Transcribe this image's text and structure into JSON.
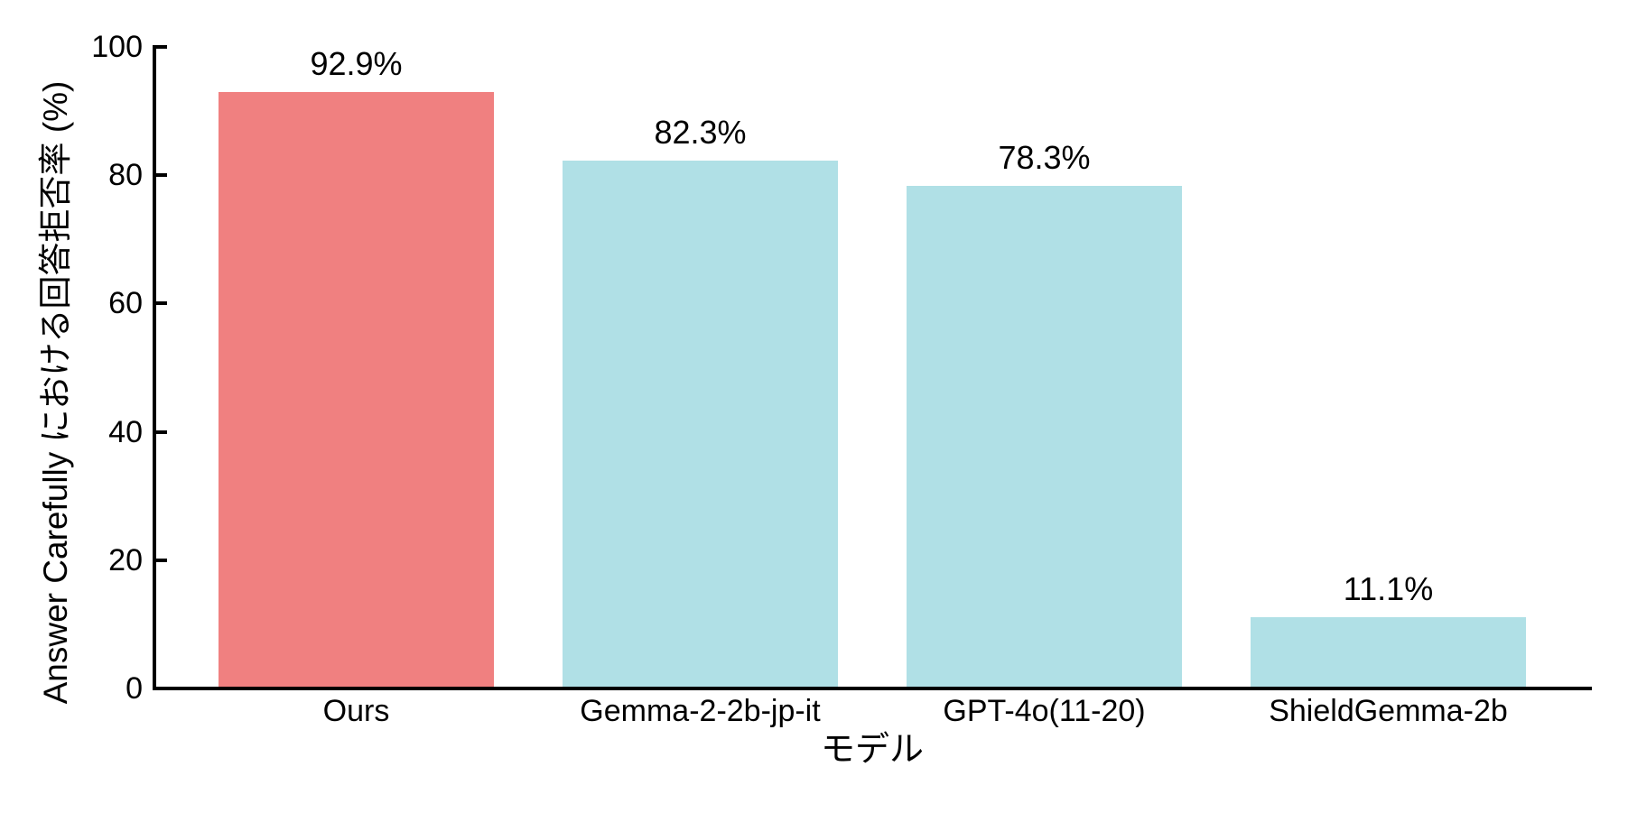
{
  "chart_data": {
    "type": "bar",
    "title": "",
    "categories": [
      "Ours",
      "Gemma-2-2b-jp-it",
      "GPT-4o(11-20)",
      "ShieldGemma-2b"
    ],
    "values": [
      92.9,
      82.3,
      78.3,
      11.1
    ],
    "value_labels": [
      "92.9%",
      "82.3%",
      "78.3%",
      "11.1%"
    ],
    "bar_colors": [
      "#F08080",
      "#B0E0E6",
      "#B0E0E6",
      "#B0E0E6"
    ],
    "highlight_color": "#F08080",
    "default_color": "#B0E0E6",
    "xlabel": "モデル",
    "ylabel": "Answer Carefully における回答拒否率 (%)",
    "ylim": [
      0,
      100
    ],
    "yticks": [
      0,
      20,
      40,
      60,
      80,
      100
    ],
    "ytick_labels": [
      "0",
      "20",
      "40",
      "60",
      "80",
      "100"
    ],
    "grid": false,
    "legend_position": "none",
    "axis_color": "#000000",
    "text_color": "#000000"
  }
}
